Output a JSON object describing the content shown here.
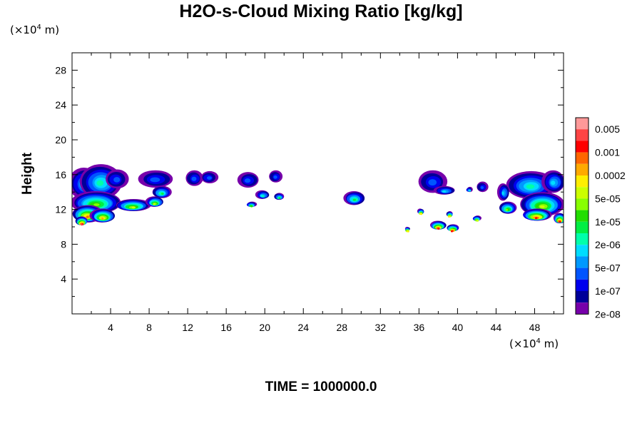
{
  "chart_data": {
    "type": "heatmap",
    "title": "H2O-s-Cloud Mixing Ratio [kg/kg]",
    "ylabel": "Height",
    "x_unit_prefix": "(×10",
    "x_unit_exp": "4",
    "x_unit_suffix": " m)",
    "y_unit_prefix": "(×10",
    "y_unit_exp": "4",
    "y_unit_suffix": " m)",
    "time_label": "TIME = 1000000.0",
    "xlim": [
      0,
      51
    ],
    "ylim": [
      0,
      30
    ],
    "x_ticks": [
      4,
      8,
      12,
      16,
      20,
      24,
      28,
      32,
      36,
      40,
      44,
      48
    ],
    "y_ticks": [
      4,
      8,
      12,
      16,
      20,
      24,
      28
    ],
    "colorbar": {
      "labels": [
        "0.005",
        "0.001",
        "0.0002",
        "5e-05",
        "1e-05",
        "2e-06",
        "5e-07",
        "1e-07",
        "2e-08"
      ],
      "colors": [
        "#ff9999",
        "#ff4444",
        "#ff0000",
        "#ff6600",
        "#ffaa00",
        "#ffee00",
        "#ccff00",
        "#88ff00",
        "#22dd00",
        "#00ee44",
        "#00ffaa",
        "#00ddff",
        "#0099ff",
        "#0055ff",
        "#0000ee",
        "#000099",
        "#7700aa"
      ]
    },
    "clouds": [
      {
        "x": 1.3,
        "y": 15.0,
        "rx": 1.6,
        "ry": 1.8,
        "level": 0.3
      },
      {
        "x": 3.0,
        "y": 15.2,
        "rx": 2.2,
        "ry": 2.0,
        "level": 0.35
      },
      {
        "x": 4.6,
        "y": 15.5,
        "rx": 1.2,
        "ry": 1.1,
        "level": 0.2
      },
      {
        "x": 2.5,
        "y": 12.8,
        "rx": 2.6,
        "ry": 1.3,
        "level": 0.55
      },
      {
        "x": 1.6,
        "y": 11.5,
        "rx": 1.6,
        "ry": 1.0,
        "level": 0.8
      },
      {
        "x": 3.2,
        "y": 11.3,
        "rx": 1.3,
        "ry": 0.8,
        "level": 0.75
      },
      {
        "x": 1.0,
        "y": 10.7,
        "rx": 0.6,
        "ry": 0.5,
        "level": 0.95
      },
      {
        "x": 6.3,
        "y": 12.5,
        "rx": 1.8,
        "ry": 0.7,
        "level": 0.6
      },
      {
        "x": 8.7,
        "y": 15.5,
        "rx": 1.8,
        "ry": 1.0,
        "level": 0.2
      },
      {
        "x": 9.3,
        "y": 14.0,
        "rx": 1.0,
        "ry": 0.7,
        "level": 0.45
      },
      {
        "x": 8.6,
        "y": 12.9,
        "rx": 0.9,
        "ry": 0.6,
        "level": 0.6
      },
      {
        "x": 12.7,
        "y": 15.6,
        "rx": 0.9,
        "ry": 0.9,
        "level": 0.2
      },
      {
        "x": 14.2,
        "y": 15.7,
        "rx": 0.9,
        "ry": 0.7,
        "level": 0.2
      },
      {
        "x": 18.3,
        "y": 15.4,
        "rx": 1.1,
        "ry": 0.9,
        "level": 0.2
      },
      {
        "x": 21.1,
        "y": 15.8,
        "rx": 0.7,
        "ry": 0.7,
        "level": 0.2
      },
      {
        "x": 19.8,
        "y": 13.7,
        "rx": 0.7,
        "ry": 0.5,
        "level": 0.4
      },
      {
        "x": 21.5,
        "y": 13.5,
        "rx": 0.5,
        "ry": 0.4,
        "level": 0.45
      },
      {
        "x": 18.6,
        "y": 12.6,
        "rx": 0.5,
        "ry": 0.3,
        "level": 0.5
      },
      {
        "x": 29.3,
        "y": 13.3,
        "rx": 1.1,
        "ry": 0.8,
        "level": 0.45
      },
      {
        "x": 37.4,
        "y": 15.2,
        "rx": 1.5,
        "ry": 1.3,
        "level": 0.2
      },
      {
        "x": 38.7,
        "y": 14.2,
        "rx": 1.1,
        "ry": 0.5,
        "level": 0.3
      },
      {
        "x": 42.6,
        "y": 14.6,
        "rx": 0.6,
        "ry": 0.6,
        "level": 0.2
      },
      {
        "x": 41.2,
        "y": 14.3,
        "rx": 0.3,
        "ry": 0.3,
        "level": 0.3
      },
      {
        "x": 38.0,
        "y": 10.2,
        "rx": 0.8,
        "ry": 0.5,
        "level": 0.85
      },
      {
        "x": 39.5,
        "y": 9.9,
        "rx": 0.6,
        "ry": 0.4,
        "level": 0.9
      },
      {
        "x": 36.2,
        "y": 11.8,
        "rx": 0.3,
        "ry": 0.3,
        "level": 0.7
      },
      {
        "x": 39.2,
        "y": 11.5,
        "rx": 0.3,
        "ry": 0.3,
        "level": 0.7
      },
      {
        "x": 42.0,
        "y": 11.0,
        "rx": 0.4,
        "ry": 0.3,
        "level": 0.6
      },
      {
        "x": 34.8,
        "y": 9.8,
        "rx": 0.2,
        "ry": 0.2,
        "level": 0.7
      },
      {
        "x": 47.6,
        "y": 14.8,
        "rx": 2.6,
        "ry": 1.6,
        "level": 0.35
      },
      {
        "x": 50.0,
        "y": 15.2,
        "rx": 1.2,
        "ry": 1.3,
        "level": 0.3
      },
      {
        "x": 48.8,
        "y": 12.6,
        "rx": 2.3,
        "ry": 1.4,
        "level": 0.6
      },
      {
        "x": 48.2,
        "y": 11.4,
        "rx": 1.5,
        "ry": 0.7,
        "level": 0.85
      },
      {
        "x": 50.6,
        "y": 11.0,
        "rx": 0.6,
        "ry": 0.6,
        "level": 0.9
      },
      {
        "x": 45.2,
        "y": 12.2,
        "rx": 0.9,
        "ry": 0.7,
        "level": 0.55
      },
      {
        "x": 44.8,
        "y": 14.0,
        "rx": 0.6,
        "ry": 1.0,
        "level": 0.3
      }
    ]
  }
}
